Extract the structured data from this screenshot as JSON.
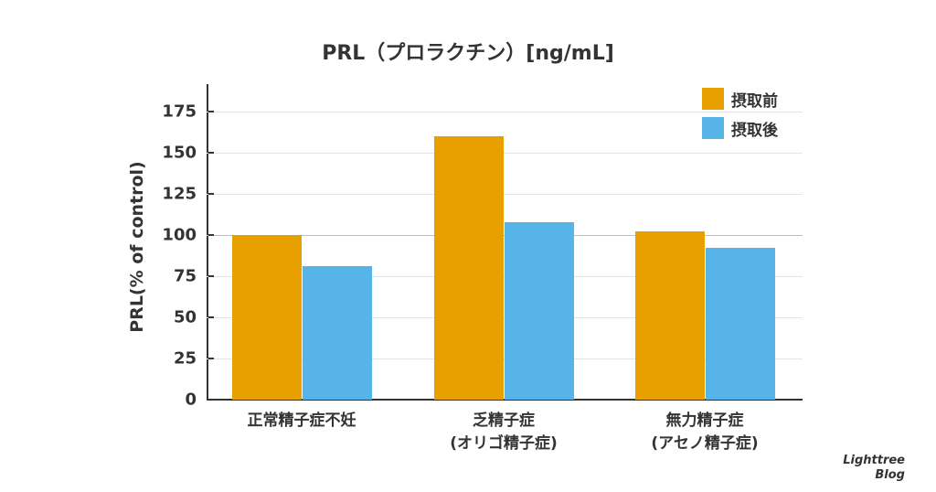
{
  "chart_data": {
    "type": "bar",
    "title": "PRL（プロラクチン）[ng/mL]",
    "xlabel": "",
    "ylabel": "PRL(% of control)",
    "ylim": [
      0,
      195
    ],
    "yticks": [
      0,
      25,
      50,
      75,
      100,
      125,
      150,
      175
    ],
    "reference_line": 100,
    "grid": true,
    "legend_position": "upper right",
    "categories": [
      "正常精子症不妊",
      "乏精子症\n(オリゴ精子症)",
      "無力精子症\n(アセノ精子症)"
    ],
    "series": [
      {
        "name": "摂取前",
        "color": "#E8A000",
        "values": [
          100,
          160,
          102
        ]
      },
      {
        "name": "摂取後",
        "color": "#56B4E9",
        "values": [
          81,
          108,
          92
        ]
      }
    ]
  },
  "title": "PRL（プロラクチン）[ng/mL]",
  "ylabel": "PRL(% of control)",
  "yticks": [
    "0",
    "25",
    "50",
    "75",
    "100",
    "125",
    "150",
    "175"
  ],
  "xlabels": [
    {
      "line1": "正常精子症不妊",
      "line2": ""
    },
    {
      "line1": "乏精子症",
      "line2": "(オリゴ精子症)"
    },
    {
      "line1": "無力精子症",
      "line2": "(アセノ精子症)"
    }
  ],
  "legend": [
    {
      "label": "摂取前",
      "color": "#E8A000"
    },
    {
      "label": "摂取後",
      "color": "#56B4E9"
    }
  ],
  "watermark": {
    "line1": "Lighttree",
    "line2": "Blog"
  }
}
